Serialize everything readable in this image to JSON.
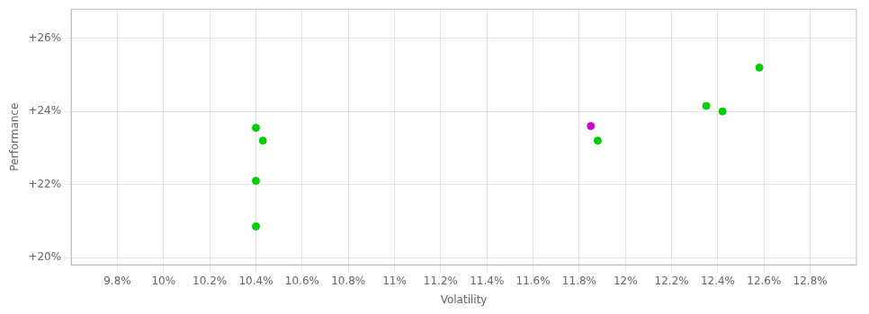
{
  "chart_data": {
    "type": "scatter",
    "xlabel": "Volatility",
    "ylabel": "Performance",
    "x": [
      0.104,
      0.1043,
      0.104,
      0.104,
      0.1185,
      0.1188,
      0.1235,
      0.1242,
      0.1258
    ],
    "values": [
      0.2355,
      0.232,
      0.221,
      0.2085,
      0.236,
      0.232,
      0.2415,
      0.24,
      0.252
    ],
    "colors": [
      "#00cc00",
      "#00cc00",
      "#00cc00",
      "#00cc00",
      "#cc00cc",
      "#00cc00",
      "#00cc00",
      "#00cc00",
      "#00cc00"
    ],
    "xlim": [
      0.096,
      0.13
    ],
    "ylim": [
      0.198,
      0.268
    ],
    "xticks": [
      {
        "value": 0.098,
        "label": "9.8%"
      },
      {
        "value": 0.1,
        "label": "10%"
      },
      {
        "value": 0.102,
        "label": "10.2%"
      },
      {
        "value": 0.104,
        "label": "10.4%"
      },
      {
        "value": 0.106,
        "label": "10.6%"
      },
      {
        "value": 0.108,
        "label": "10.8%"
      },
      {
        "value": 0.11,
        "label": "11%"
      },
      {
        "value": 0.112,
        "label": "11.2%"
      },
      {
        "value": 0.114,
        "label": "11.4%"
      },
      {
        "value": 0.116,
        "label": "11.6%"
      },
      {
        "value": 0.118,
        "label": "11.8%"
      },
      {
        "value": 0.12,
        "label": "12%"
      },
      {
        "value": 0.122,
        "label": "12.2%"
      },
      {
        "value": 0.124,
        "label": "12.4%"
      },
      {
        "value": 0.126,
        "label": "12.6%"
      },
      {
        "value": 0.128,
        "label": "12.8%"
      }
    ],
    "yticks": [
      {
        "value": 0.2,
        "label": "+20%"
      },
      {
        "value": 0.22,
        "label": "+22%"
      },
      {
        "value": 0.24,
        "label": "+24%"
      },
      {
        "value": 0.26,
        "label": "+26%"
      }
    ],
    "grid": true
  }
}
